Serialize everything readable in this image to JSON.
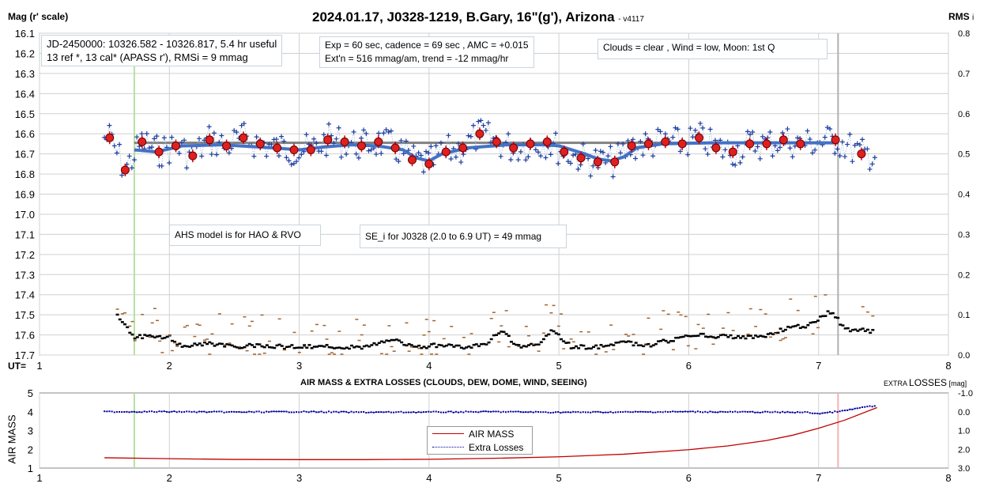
{
  "header": {
    "title": "2024.01.17, J0328-1219, B.Gary, 16\"(g'), Arizona",
    "version": "- v4117",
    "left_axis_label": "Mag (r' scale)",
    "right_axis_label": "RMS",
    "right_axis_label_sub": "i",
    "ut_label": "UT="
  },
  "annotations": {
    "jd_line1": "JD-2450000: 10326.582 - 10326.817, 5.4 hr useful",
    "jd_line2": "13 ref *, 13 cal*  (APASS r'), RMSi = 9 mmag",
    "exp_line1": "Exp = 60 sec, cadence = 69 sec , AMC = +0.015",
    "exp_line2": "Ext'n = 516 mmag/am, trend = -12 mmag/hr",
    "clouds": "Clouds = clear , Wind = low,  Moon:  1st Q",
    "ahs": "AHS model is for HAO & RVO",
    "se": "SE_i for J0328 (2.0 to 6.9 UT) = 49 mmag"
  },
  "lower": {
    "title": "AIR MASS & EXTRA LOSSES (CLOUDS, DEW, DOME, WIND, SEEING)",
    "right_label_small": "EXTRA",
    "right_label_big": "LOSSES",
    "right_label_unit": "[mag]",
    "left_label": "AIR MASS",
    "legend_airmass": "AIR MASS",
    "legend_extra": "Extra Losses"
  },
  "colors": {
    "blue_points": "#1f3f9f",
    "model_line": "#4472c4",
    "red_points": "#e02020",
    "gray_line": "#808080",
    "green_marker": "#b6e0a0",
    "gray_marker": "#b0b0b0",
    "pink_marker": "#f4b0b0",
    "airmass": "#c00000",
    "extra": "#0000a0",
    "rms_black": "#000000",
    "rms_brown": "#a0622d"
  },
  "chart_data": [
    {
      "type": "scatter",
      "x_axis": {
        "label": "UT=",
        "lim": [
          1,
          8
        ],
        "ticks": [
          1,
          2,
          3,
          4,
          5,
          6,
          7,
          8
        ]
      },
      "y_left": {
        "label": "Mag (r' scale)",
        "lim": [
          16.1,
          17.7
        ],
        "inverted": true,
        "ticks": [
          "16.1",
          "16.2",
          "16.3",
          "16.4",
          "16.5",
          "16.6",
          "16.7",
          "16.8",
          "16.9",
          "17.0",
          "17.1",
          "17.2",
          "17.3",
          "17.4",
          "17.5",
          "17.6",
          "17.7"
        ]
      },
      "y_right": {
        "label": "RMS i",
        "lim": [
          0.0,
          0.8
        ],
        "ticks": [
          "0.8",
          "0.7",
          "0.6",
          "0.5",
          "0.4",
          "0.3",
          "0.2",
          "0.1",
          "0.0"
        ]
      },
      "markers": {
        "green_ut": 1.73,
        "gray_ut": 7.15
      },
      "reference_line": {
        "mag": 16.645,
        "ut_range": [
          1.73,
          7.15
        ]
      },
      "series": [
        {
          "name": "binned magnitudes",
          "style": "red circles",
          "x": [
            1.54,
            1.66,
            1.79,
            1.92,
            2.05,
            2.18,
            2.31,
            2.44,
            2.57,
            2.7,
            2.83,
            2.96,
            3.09,
            3.22,
            3.35,
            3.48,
            3.61,
            3.74,
            3.87,
            4.0,
            4.13,
            4.26,
            4.39,
            4.52,
            4.65,
            4.78,
            4.91,
            5.04,
            5.17,
            5.3,
            5.43,
            5.56,
            5.69,
            5.82,
            5.95,
            6.08,
            6.21,
            6.34,
            6.47,
            6.6,
            6.73,
            6.86,
            7.13,
            7.33
          ],
          "y": [
            16.62,
            16.78,
            16.64,
            16.69,
            16.66,
            16.71,
            16.63,
            16.66,
            16.62,
            16.65,
            16.67,
            16.68,
            16.68,
            16.63,
            16.64,
            16.66,
            16.64,
            16.67,
            16.73,
            16.75,
            16.69,
            16.67,
            16.6,
            16.64,
            16.67,
            16.65,
            16.64,
            16.69,
            16.72,
            16.74,
            16.74,
            16.66,
            16.65,
            16.64,
            16.65,
            16.62,
            16.67,
            16.69,
            16.65,
            16.65,
            16.63,
            16.65,
            16.63,
            16.7
          ]
        },
        {
          "name": "AHS model",
          "style": "blue thick line",
          "x": [
            1.73,
            1.9,
            2.1,
            2.4,
            2.8,
            3.0,
            3.2,
            3.4,
            3.6,
            3.8,
            3.9,
            4.0,
            4.1,
            4.3,
            4.6,
            4.9,
            5.0,
            5.1,
            5.2,
            5.3,
            5.4,
            5.5,
            5.6,
            5.8,
            6.2,
            6.8,
            7.15
          ],
          "y": [
            16.68,
            16.69,
            16.66,
            16.655,
            16.67,
            16.68,
            16.665,
            16.655,
            16.66,
            16.68,
            16.72,
            16.735,
            16.7,
            16.67,
            16.655,
            16.655,
            16.66,
            16.68,
            16.7,
            16.725,
            16.735,
            16.715,
            16.67,
            16.65,
            16.645,
            16.645,
            16.645
          ]
        }
      ],
      "rms_series": {
        "name": "RMS i",
        "style": "black dashes",
        "x": [
          1.6,
          1.73,
          2.0,
          2.1,
          2.3,
          2.5,
          2.7,
          2.9,
          3.1,
          3.3,
          3.5,
          3.65,
          3.75,
          3.9,
          4.1,
          4.3,
          4.45,
          4.55,
          4.7,
          4.85,
          4.95,
          5.1,
          5.3,
          5.5,
          5.7,
          5.9,
          6.1,
          6.3,
          6.5,
          6.6,
          6.8,
          6.9,
          7.0,
          7.1,
          7.2,
          7.4
        ],
        "y": [
          0.1,
          0.045,
          0.045,
          0.02,
          0.03,
          0.02,
          0.025,
          0.02,
          0.02,
          0.02,
          0.02,
          0.03,
          0.035,
          0.02,
          0.025,
          0.02,
          0.03,
          0.06,
          0.02,
          0.03,
          0.06,
          0.02,
          0.02,
          0.03,
          0.025,
          0.04,
          0.05,
          0.045,
          0.045,
          0.05,
          0.07,
          0.07,
          0.09,
          0.11,
          0.065,
          0.06
        ]
      }
    },
    {
      "type": "line",
      "x_axis": {
        "lim": [
          1,
          8
        ],
        "ticks": [
          1,
          2,
          3,
          4,
          5,
          6,
          7,
          8
        ]
      },
      "y_left": {
        "label": "AIR MASS",
        "lim": [
          1,
          5
        ],
        "ticks": [
          "1",
          "2",
          "3",
          "4",
          "5"
        ]
      },
      "y_right": {
        "label": "EXTRA LOSSES [mag]",
        "lim": [
          3.0,
          -1.0
        ],
        "ticks": [
          "-1.0",
          "0.0",
          "1.0",
          "2.0",
          "3.0"
        ]
      },
      "markers": {
        "green_ut": 1.73,
        "pink_ut": 7.15
      },
      "series": [
        {
          "name": "AIR MASS",
          "x": [
            1.5,
            1.8,
            2.0,
            2.5,
            3.0,
            3.5,
            4.0,
            4.5,
            5.0,
            5.5,
            6.0,
            6.3,
            6.6,
            6.8,
            7.0,
            7.2,
            7.45
          ],
          "y": [
            1.55,
            1.52,
            1.5,
            1.46,
            1.45,
            1.45,
            1.47,
            1.52,
            1.6,
            1.74,
            1.98,
            2.18,
            2.47,
            2.75,
            3.12,
            3.55,
            4.22
          ]
        },
        {
          "name": "Extra Losses",
          "x": [
            1.5,
            2.0,
            2.5,
            3.0,
            3.5,
            4.0,
            4.5,
            5.0,
            5.5,
            6.0,
            6.5,
            6.9,
            7.0,
            7.2,
            7.35,
            7.45
          ],
          "y": [
            0.0,
            0.0,
            0.02,
            0.0,
            0.03,
            0.02,
            0.0,
            0.03,
            0.02,
            0.0,
            0.02,
            0.03,
            0.1,
            -0.05,
            -0.25,
            -0.3
          ]
        }
      ]
    }
  ]
}
